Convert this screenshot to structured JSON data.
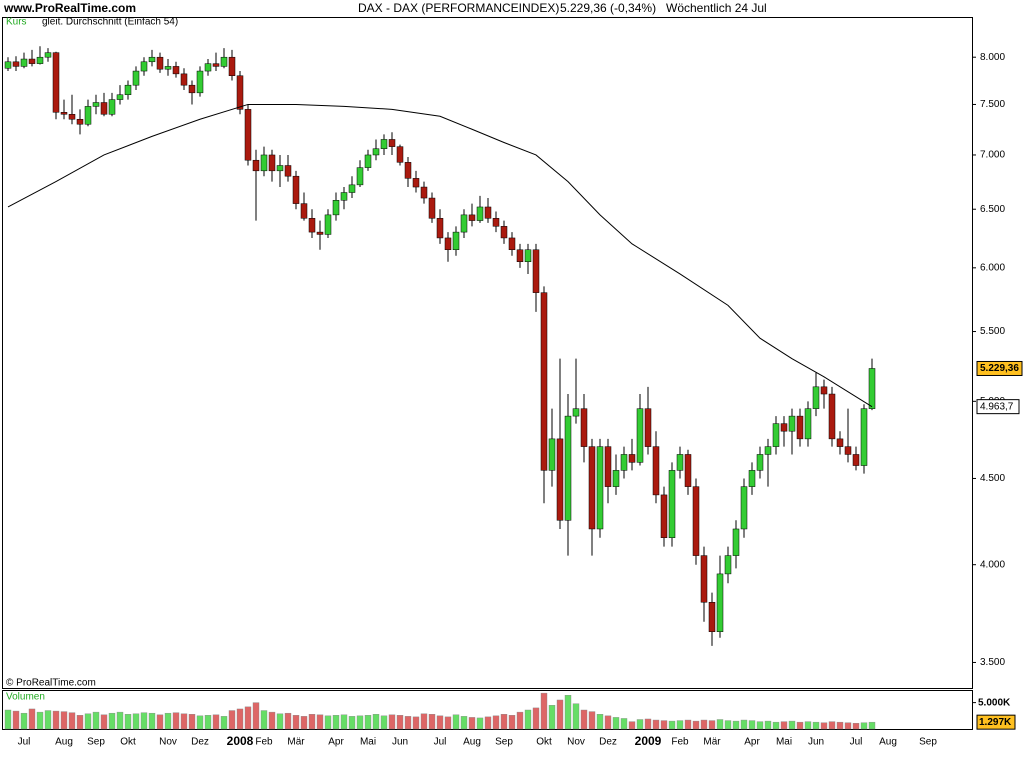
{
  "header": {
    "site": "www.ProRealTime.com",
    "instrument": "DAX - DAX (PERFORMANCEINDEX)",
    "quote": "5.229,36 (-0,34%)",
    "period": "Wöchentlich  24 Jul"
  },
  "chart_data": {
    "type": "candlestick",
    "series_label": "Kurs",
    "copyright": "© ProRealTime.com",
    "log_scale": true,
    "grid": false,
    "up_color": "#33cc33",
    "down_color": "#aa1a0f",
    "last_label": "5.229,36",
    "categories": [
      null,
      null,
      "Jul",
      null,
      null,
      null,
      null,
      "Aug",
      null,
      null,
      null,
      "Sep",
      null,
      null,
      null,
      "Okt",
      null,
      null,
      null,
      null,
      "Nov",
      null,
      null,
      null,
      "Dez",
      null,
      null,
      null,
      null,
      "2008",
      null,
      null,
      "Feb",
      null,
      null,
      null,
      "Mär",
      null,
      null,
      null,
      null,
      "Apr",
      null,
      null,
      null,
      "Mai",
      null,
      null,
      null,
      "Jun",
      null,
      null,
      null,
      null,
      "Jul",
      null,
      null,
      null,
      "Aug",
      null,
      null,
      null,
      "Sep",
      null,
      null,
      null,
      null,
      "Okt",
      null,
      null,
      null,
      "Nov",
      null,
      null,
      null,
      "Dez",
      null,
      null,
      null,
      null,
      "2009",
      null,
      null,
      null,
      "Feb",
      null,
      null,
      null,
      "Mär",
      null,
      null,
      null,
      null,
      "Apr",
      null,
      null,
      null,
      "Mai",
      null,
      null,
      null,
      "Jun",
      null,
      null,
      null,
      null,
      "Jul",
      null,
      null,
      null,
      "Aug",
      null,
      null,
      null,
      null,
      "Sep"
    ],
    "ohlc": [
      [
        7880,
        8000,
        7850,
        7950
      ],
      [
        7950,
        8010,
        7850,
        7900
      ],
      [
        7900,
        8050,
        7880,
        7980
      ],
      [
        7980,
        8080,
        7900,
        7930
      ],
      [
        7930,
        8120,
        7920,
        8000
      ],
      [
        8000,
        8100,
        7950,
        8050
      ],
      [
        8050,
        8060,
        7350,
        7420
      ],
      [
        7420,
        7550,
        7350,
        7400
      ],
      [
        7400,
        7600,
        7300,
        7350
      ],
      [
        7350,
        7450,
        7200,
        7300
      ],
      [
        7300,
        7550,
        7280,
        7480
      ],
      [
        7480,
        7600,
        7400,
        7520
      ],
      [
        7520,
        7620,
        7380,
        7400
      ],
      [
        7400,
        7620,
        7380,
        7550
      ],
      [
        7550,
        7700,
        7500,
        7600
      ],
      [
        7600,
        7750,
        7550,
        7700
      ],
      [
        7700,
        7900,
        7650,
        7850
      ],
      [
        7850,
        8000,
        7800,
        7950
      ],
      [
        7950,
        8080,
        7900,
        8000
      ],
      [
        8000,
        8050,
        7830,
        7870
      ],
      [
        7870,
        7980,
        7800,
        7900
      ],
      [
        7900,
        7950,
        7780,
        7820
      ],
      [
        7820,
        7880,
        7650,
        7700
      ],
      [
        7700,
        7750,
        7500,
        7620
      ],
      [
        7620,
        7900,
        7580,
        7850
      ],
      [
        7850,
        7980,
        7800,
        7930
      ],
      [
        7930,
        8050,
        7850,
        7900
      ],
      [
        7900,
        8100,
        7880,
        8000
      ],
      [
        8000,
        8080,
        7750,
        7800
      ],
      [
        7800,
        7850,
        7400,
        7450
      ],
      [
        7450,
        7500,
        6900,
        6950
      ],
      [
        6950,
        7050,
        6400,
        6850
      ],
      [
        6850,
        7080,
        6800,
        7000
      ],
      [
        7000,
        7050,
        6750,
        6850
      ],
      [
        6850,
        7000,
        6700,
        6900
      ],
      [
        6900,
        7000,
        6750,
        6800
      ],
      [
        6800,
        6850,
        6500,
        6550
      ],
      [
        6550,
        6650,
        6400,
        6420
      ],
      [
        6420,
        6500,
        6250,
        6300
      ],
      [
        6300,
        6400,
        6150,
        6280
      ],
      [
        6280,
        6500,
        6250,
        6450
      ],
      [
        6450,
        6650,
        6400,
        6580
      ],
      [
        6580,
        6700,
        6500,
        6650
      ],
      [
        6650,
        6800,
        6600,
        6720
      ],
      [
        6720,
        6950,
        6700,
        6880
      ],
      [
        6880,
        7050,
        6850,
        7000
      ],
      [
        7000,
        7150,
        6950,
        7060
      ],
      [
        7060,
        7200,
        7000,
        7150
      ],
      [
        7150,
        7220,
        7000,
        7080
      ],
      [
        7080,
        7100,
        6900,
        6930
      ],
      [
        6930,
        6980,
        6700,
        6780
      ],
      [
        6780,
        6850,
        6650,
        6700
      ],
      [
        6700,
        6750,
        6550,
        6600
      ],
      [
        6600,
        6650,
        6380,
        6420
      ],
      [
        6420,
        6500,
        6200,
        6250
      ],
      [
        6250,
        6300,
        6050,
        6150
      ],
      [
        6150,
        6350,
        6100,
        6300
      ],
      [
        6300,
        6500,
        6250,
        6450
      ],
      [
        6450,
        6550,
        6350,
        6400
      ],
      [
        6400,
        6620,
        6380,
        6520
      ],
      [
        6520,
        6600,
        6380,
        6420
      ],
      [
        6420,
        6480,
        6300,
        6350
      ],
      [
        6350,
        6400,
        6200,
        6250
      ],
      [
        6250,
        6300,
        6100,
        6150
      ],
      [
        6150,
        6200,
        6000,
        6050
      ],
      [
        6050,
        6200,
        5950,
        6150
      ],
      [
        6150,
        6200,
        5650,
        5800
      ],
      [
        5800,
        5850,
        4350,
        4550
      ],
      [
        4550,
        4950,
        4450,
        4750
      ],
      [
        4750,
        5300,
        4200,
        4250
      ],
      [
        4250,
        5050,
        4050,
        4900
      ],
      [
        4900,
        5300,
        4850,
        4950
      ],
      [
        4950,
        5050,
        4600,
        4700
      ],
      [
        4700,
        4750,
        4050,
        4200
      ],
      [
        4200,
        4750,
        4150,
        4700
      ],
      [
        4700,
        4750,
        4350,
        4450
      ],
      [
        4450,
        4650,
        4400,
        4550
      ],
      [
        4550,
        4700,
        4500,
        4650
      ],
      [
        4650,
        4750,
        4550,
        4600
      ],
      [
        4600,
        5050,
        4580,
        4950
      ],
      [
        4950,
        5100,
        4650,
        4700
      ],
      [
        4700,
        4800,
        4350,
        4400
      ],
      [
        4400,
        4450,
        4100,
        4150
      ],
      [
        4150,
        4600,
        4100,
        4550
      ],
      [
        4550,
        4700,
        4500,
        4650
      ],
      [
        4650,
        4680,
        4400,
        4450
      ],
      [
        4450,
        4500,
        4000,
        4050
      ],
      [
        4050,
        4100,
        3700,
        3800
      ],
      [
        3800,
        3850,
        3580,
        3650
      ],
      [
        3650,
        4050,
        3620,
        3950
      ],
      [
        3950,
        4100,
        3900,
        4050
      ],
      [
        4050,
        4250,
        3980,
        4200
      ],
      [
        4200,
        4500,
        4150,
        4450
      ],
      [
        4450,
        4600,
        4400,
        4550
      ],
      [
        4550,
        4700,
        4500,
        4650
      ],
      [
        4650,
        4750,
        4450,
        4700
      ],
      [
        4700,
        4900,
        4650,
        4850
      ],
      [
        4850,
        4900,
        4700,
        4800
      ],
      [
        4800,
        4950,
        4650,
        4900
      ],
      [
        4900,
        4950,
        4700,
        4750
      ],
      [
        4750,
        5000,
        4700,
        4950
      ],
      [
        4950,
        5200,
        4900,
        5100
      ],
      [
        5100,
        5150,
        4950,
        5050
      ],
      [
        5050,
        5100,
        4700,
        4750
      ],
      [
        4750,
        4800,
        4650,
        4700
      ],
      [
        4700,
        4950,
        4600,
        4650
      ],
      [
        4650,
        4700,
        4550,
        4580
      ],
      [
        4580,
        4980,
        4530,
        4950
      ],
      [
        4950,
        5300,
        4940,
        5229.36
      ],
      null,
      null,
      null,
      null,
      null,
      null,
      null
    ],
    "ylim": [
      3380,
      8440
    ],
    "yticks": [
      {
        "value": 3500,
        "label": "3.500"
      },
      {
        "value": 4000,
        "label": "4.000"
      },
      {
        "value": 4500,
        "label": "4.500"
      },
      {
        "value": 5000,
        "label": "5.000"
      },
      {
        "value": 5500,
        "label": "5.500"
      },
      {
        "value": 6000,
        "label": "6.000"
      },
      {
        "value": 6500,
        "label": "6.500"
      },
      {
        "value": 7000,
        "label": "7.000"
      },
      {
        "value": 7500,
        "label": "7.500"
      },
      {
        "value": 8000,
        "label": "8.000"
      }
    ],
    "moving_average": {
      "name": "gleit. Durchschnitt (Einfach 54)",
      "color": "#000000",
      "x": [
        0,
        6,
        12,
        18,
        24,
        30,
        36,
        42,
        48,
        54,
        58,
        62,
        66,
        70,
        74,
        78,
        84,
        90,
        94,
        98,
        102,
        108
      ],
      "values": [
        6520,
        6750,
        7000,
        7180,
        7350,
        7500,
        7500,
        7480,
        7450,
        7380,
        7250,
        7120,
        7000,
        6750,
        6450,
        6200,
        5950,
        5700,
        5450,
        5300,
        5170,
        4963.7
      ],
      "last_label": "4.963,7"
    },
    "volume": {
      "name": "Volumen",
      "up_color": "#66dd66",
      "down_color": "#dd6666",
      "ylim": [
        0,
        7200
      ],
      "yticks": [
        {
          "value": 5000,
          "label": "5.000K"
        }
      ],
      "last_label": "1.297K",
      "values": [
        3600,
        3400,
        3000,
        3800,
        3200,
        3500,
        3400,
        3300,
        3100,
        2600,
        2900,
        3200,
        2700,
        3000,
        3200,
        2800,
        2900,
        3100,
        3000,
        2700,
        3000,
        3100,
        2900,
        2800,
        2500,
        2600,
        2700,
        2400,
        3500,
        3800,
        4200,
        5000,
        3500,
        3200,
        2900,
        3000,
        2600,
        2400,
        2800,
        2700,
        2500,
        2600,
        2700,
        2400,
        2500,
        2600,
        2800,
        2500,
        2700,
        2600,
        2400,
        2300,
        2900,
        2800,
        2500,
        2300,
        2700,
        2400,
        2200,
        2100,
        2300,
        2500,
        2800,
        2600,
        3200,
        3600,
        4000,
        6800,
        4500,
        5500,
        6400,
        4800,
        3600,
        3300,
        2800,
        2500,
        2200,
        2000,
        1400,
        1800,
        1900,
        1700,
        1600,
        1500,
        1600,
        1700,
        1500,
        1700,
        1600,
        1800,
        1600,
        1500,
        1700,
        1600,
        1400,
        1500,
        1300,
        1400,
        1500,
        1300,
        1400,
        1300,
        1200,
        1400,
        1300,
        1200,
        1100,
        1200,
        1297,
        null,
        null,
        null,
        null,
        null,
        null,
        null
      ]
    }
  }
}
